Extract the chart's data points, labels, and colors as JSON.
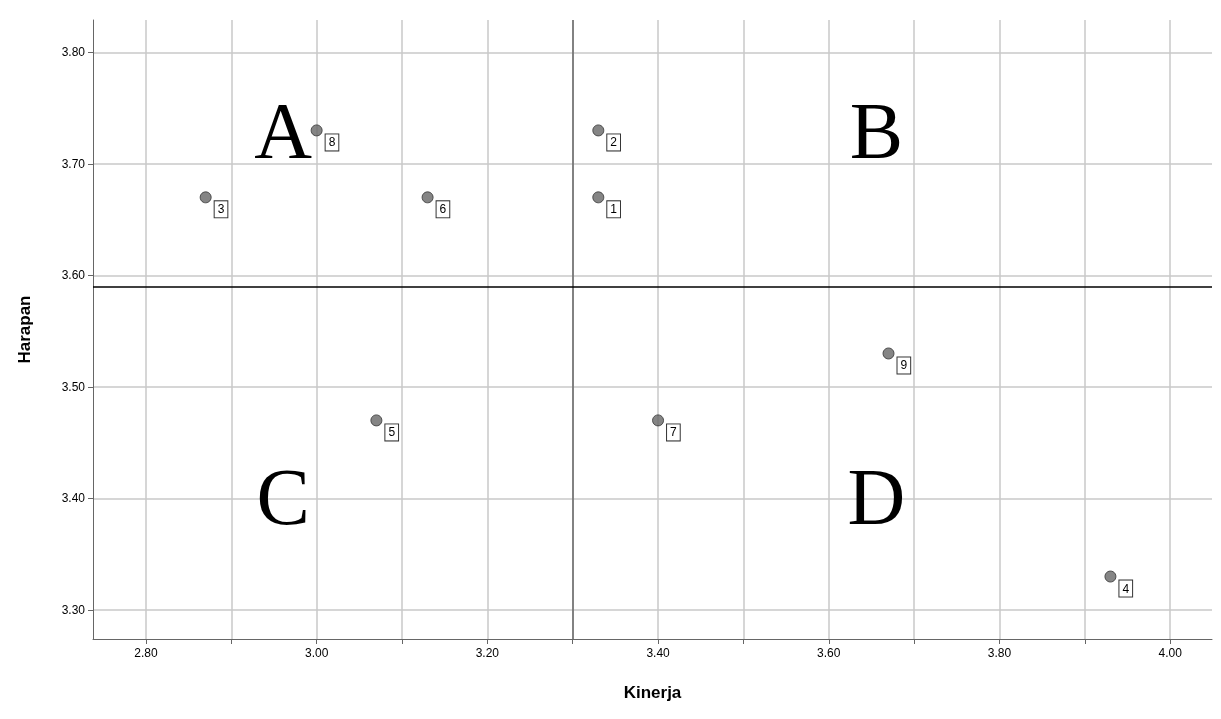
{
  "chart_data": {
    "type": "scatter",
    "xlabel": "Kinerja",
    "ylabel": "Harapan",
    "x": [
      3.33,
      3.33,
      2.87,
      3.93,
      3.07,
      3.13,
      3.4,
      3.0,
      3.67
    ],
    "values": [
      3.67,
      3.73,
      3.67,
      3.33,
      3.47,
      3.67,
      3.47,
      3.73,
      3.53
    ],
    "color": "#666666",
    "marker": "circle",
    "grid": true,
    "xlim": [
      2.738,
      4.049
    ],
    "xticks": [
      {
        "value": 2.8,
        "label": "2.80"
      },
      {
        "value": 2.9,
        "label": null
      },
      {
        "value": 3.0,
        "label": "3.00"
      },
      {
        "value": 3.1,
        "label": null
      },
      {
        "value": 3.2,
        "label": "3.20"
      },
      {
        "value": 3.3,
        "label": null
      },
      {
        "value": 3.4,
        "label": "3.40"
      },
      {
        "value": 3.5,
        "label": null
      },
      {
        "value": 3.6,
        "label": "3.60"
      },
      {
        "value": 3.7,
        "label": null
      },
      {
        "value": 3.8,
        "label": "3.80"
      },
      {
        "value": 3.9,
        "label": null
      },
      {
        "value": 4.0,
        "label": "4.00"
      }
    ],
    "ylim": [
      3.274,
      3.829
    ],
    "yticks": [
      {
        "value": 3.3,
        "label": "3.30"
      },
      {
        "value": 3.4,
        "label": "3.40"
      },
      {
        "value": 3.5,
        "label": "3.50"
      },
      {
        "value": 3.6,
        "label": "3.60"
      },
      {
        "value": 3.7,
        "label": "3.70"
      },
      {
        "value": 3.8,
        "label": "3.80"
      }
    ],
    "ref_lines": [
      {
        "axis": "x",
        "value": 3.3,
        "color": "#666666"
      },
      {
        "axis": "y",
        "value": 3.59,
        "color": "#000000"
      }
    ],
    "annotations": [
      "A",
      "B",
      "C",
      "D",
      {
        "text": "1",
        "x": 3.33,
        "y": 3.67
      },
      {
        "text": "2",
        "x": 3.33,
        "y": 3.73
      },
      {
        "text": "3",
        "x": 2.87,
        "y": 3.67
      },
      {
        "text": "4",
        "x": 3.93,
        "y": 3.33
      },
      {
        "text": "5",
        "x": 3.07,
        "y": 3.47
      },
      {
        "text": "6",
        "x": 3.13,
        "y": 3.67
      },
      {
        "text": "7",
        "x": 3.4,
        "y": 3.47
      },
      {
        "text": "8",
        "x": 3.0,
        "y": 3.73
      },
      {
        "text": "9",
        "x": 3.67,
        "y": 3.53
      }
    ]
  }
}
